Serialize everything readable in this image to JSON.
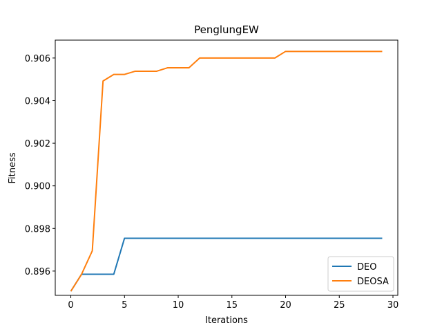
{
  "chart_data": {
    "type": "line",
    "title": "PenglungEW",
    "xlabel": "Iterations",
    "ylabel": "Fitness",
    "xlim": [
      -1.45,
      30.45
    ],
    "ylim": [
      0.89486,
      0.90684
    ],
    "xticks": [
      0,
      5,
      10,
      15,
      20,
      25,
      30
    ],
    "yticks": [
      0.896,
      0.898,
      0.9,
      0.902,
      0.904,
      0.906
    ],
    "grid": false,
    "legend_position": "lower-right",
    "x": [
      0,
      1,
      2,
      3,
      4,
      5,
      6,
      7,
      8,
      9,
      10,
      11,
      12,
      13,
      14,
      15,
      16,
      17,
      18,
      19,
      20,
      21,
      22,
      23,
      24,
      25,
      26,
      27,
      28,
      29
    ],
    "series": [
      {
        "name": "DEO",
        "color": "#1f77b4",
        "values": [
          0.89505,
          0.89585,
          0.89585,
          0.89585,
          0.89585,
          0.89754,
          0.89754,
          0.89754,
          0.89754,
          0.89754,
          0.89754,
          0.89754,
          0.89754,
          0.89754,
          0.89754,
          0.89754,
          0.89754,
          0.89754,
          0.89754,
          0.89754,
          0.89754,
          0.89754,
          0.89754,
          0.89754,
          0.89754,
          0.89754,
          0.89754,
          0.89754,
          0.89754,
          0.89754
        ]
      },
      {
        "name": "DEOSA",
        "color": "#ff7f0e",
        "values": [
          0.89505,
          0.89585,
          0.89695,
          0.90492,
          0.90523,
          0.90523,
          0.90538,
          0.90538,
          0.90538,
          0.90554,
          0.90554,
          0.90554,
          0.906,
          0.906,
          0.906,
          0.906,
          0.906,
          0.906,
          0.906,
          0.906,
          0.90631,
          0.90631,
          0.90631,
          0.90631,
          0.90631,
          0.90631,
          0.90631,
          0.90631,
          0.90631,
          0.90631
        ]
      }
    ]
  }
}
